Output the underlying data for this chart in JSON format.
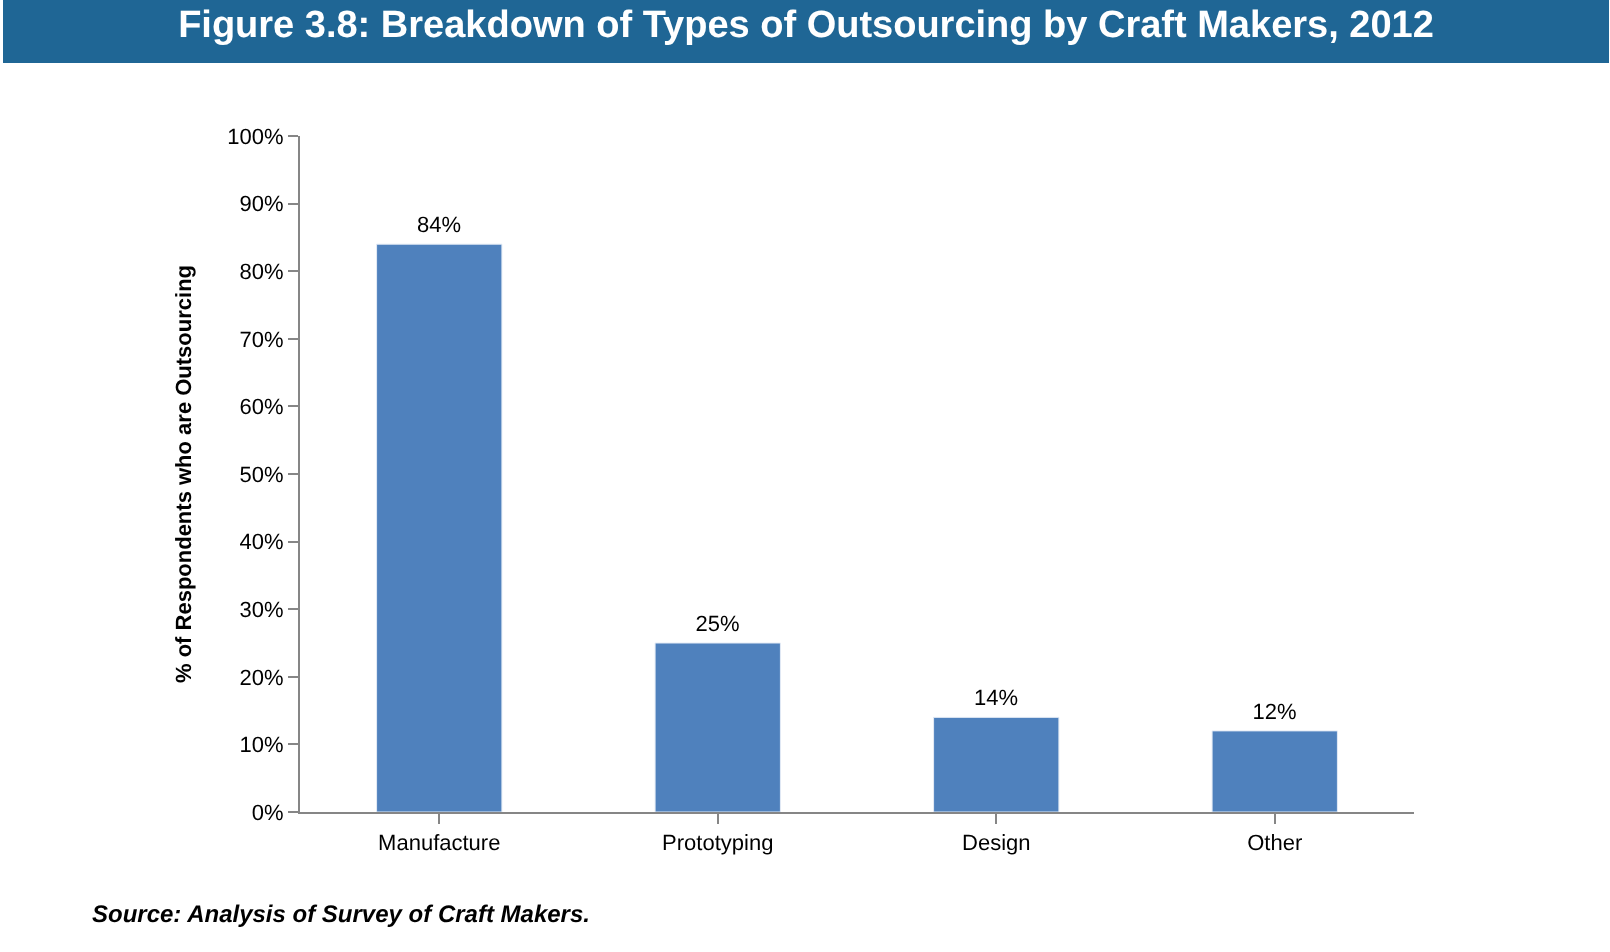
{
  "chart_data": {
    "type": "bar",
    "title": "Figure 3.8: Breakdown of Types of Outsourcing by Craft Makers, 2012",
    "ylabel": "% of Respondents who are Outsourcing",
    "categories": [
      "Manufacture",
      "Prototyping",
      "Design",
      "Other"
    ],
    "values": [
      84,
      25,
      14,
      12
    ],
    "value_labels": [
      "84%",
      "25%",
      "14%",
      "12%"
    ],
    "color": "#4f81bd",
    "ylim": [
      0,
      100
    ],
    "yticks": [
      {
        "value": 0,
        "label": "0%"
      },
      {
        "value": 10,
        "label": "10%"
      },
      {
        "value": 20,
        "label": "20%"
      },
      {
        "value": 30,
        "label": "30%"
      },
      {
        "value": 40,
        "label": "40%"
      },
      {
        "value": 50,
        "label": "50%"
      },
      {
        "value": 60,
        "label": "60%"
      },
      {
        "value": 70,
        "label": "70%"
      },
      {
        "value": 80,
        "label": "80%"
      },
      {
        "value": 90,
        "label": "90%"
      },
      {
        "value": 100,
        "label": "100%"
      }
    ],
    "legend": false,
    "annotations": [
      "Source: Analysis of Survey of Craft Makers."
    ]
  }
}
